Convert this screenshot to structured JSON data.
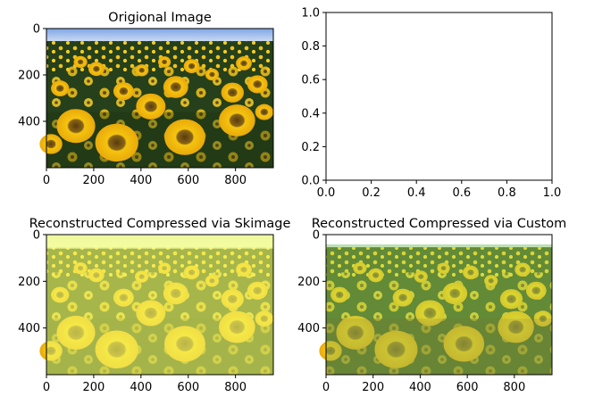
{
  "chart_data": [
    {
      "type": "image",
      "title": "Origional Image",
      "xticks": [
        0,
        200,
        400,
        600,
        800
      ],
      "yticks": [
        0,
        200,
        400
      ],
      "xlim": [
        0,
        960
      ],
      "ylim": [
        600,
        0
      ],
      "tint": "original"
    },
    {
      "type": "empty",
      "title": "",
      "xticks": [
        "0.0",
        "0.2",
        "0.4",
        "0.6",
        "0.8",
        "1.0"
      ],
      "yticks": [
        "0.0",
        "0.2",
        "0.4",
        "0.6",
        "0.8",
        "1.0"
      ],
      "xlim": [
        0,
        1
      ],
      "ylim": [
        0,
        1
      ]
    },
    {
      "type": "image",
      "title": "Reconstructed Compressed via Skimage",
      "xticks": [
        0,
        200,
        400,
        600,
        800
      ],
      "yticks": [
        0,
        200,
        400
      ],
      "xlim": [
        0,
        960
      ],
      "ylim": [
        600,
        0
      ],
      "tint": "washed-yellow"
    },
    {
      "type": "image",
      "title": "Reconstructed Compressed via Custom",
      "xticks": [
        0,
        200,
        400,
        600,
        800
      ],
      "yticks": [
        0,
        200,
        400
      ],
      "xlim": [
        0,
        960
      ],
      "ylim": [
        600,
        0
      ],
      "tint": "washed-green"
    }
  ],
  "colors": {
    "sky": "#9bb8e8",
    "field_dark": "#2f4a1c",
    "petal": "#f2c21a",
    "center": "#6b4b12"
  }
}
